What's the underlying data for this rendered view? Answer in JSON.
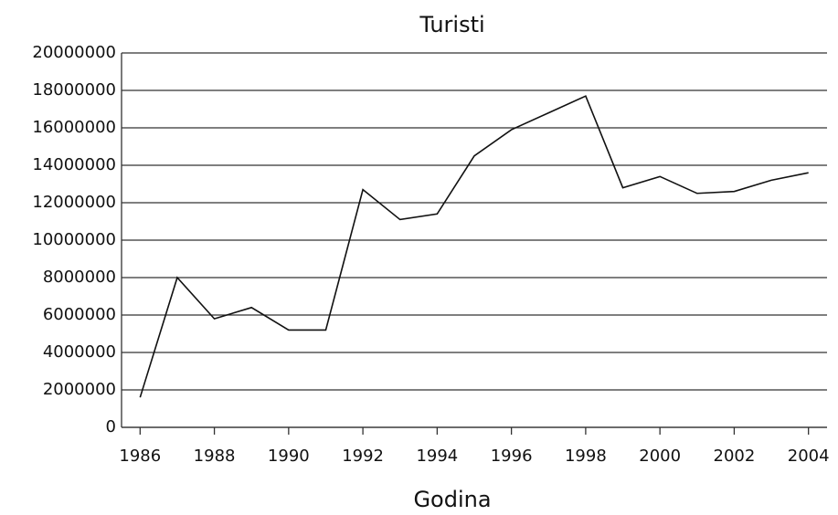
{
  "chart_data": {
    "type": "line",
    "title": "Turisti",
    "x_label": "Godina",
    "x": [
      1986,
      1987,
      1988,
      1989,
      1990,
      1991,
      1992,
      1993,
      1994,
      1995,
      1996,
      1997,
      1998,
      1999,
      2000,
      2001,
      2002,
      2003,
      2004
    ],
    "series": [
      {
        "name": "Turisti",
        "color": "#111111",
        "values": [
          1600000,
          8000000,
          5800000,
          6400000,
          5200000,
          5200000,
          12700000,
          11100000,
          11400000,
          14500000,
          15900000,
          16800000,
          17700000,
          12800000,
          13400000,
          12500000,
          12600000,
          13200000,
          13600000
        ]
      }
    ],
    "xlim": [
      1985.5,
      2004.5
    ],
    "xticks": [
      1986,
      1988,
      1990,
      1992,
      1994,
      1996,
      1998,
      2000,
      2002,
      2004
    ],
    "ylim": [
      0,
      20000000
    ],
    "yticks": [
      0,
      2000000,
      4000000,
      6000000,
      8000000,
      10000000,
      12000000,
      14000000,
      16000000,
      18000000,
      20000000
    ],
    "grid": true
  }
}
